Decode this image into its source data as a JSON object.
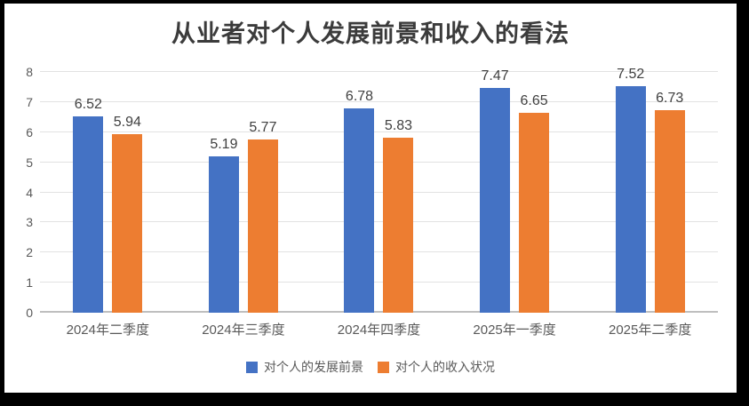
{
  "title": "从业者对个人发展前景和收入的看法",
  "chart_data": {
    "type": "bar",
    "title": "从业者对个人发展前景和收入的看法",
    "categories": [
      "2024年二季度",
      "2024年三季度",
      "2024年四季度",
      "2025年一季度",
      "2025年二季度"
    ],
    "series": [
      {
        "name": "对个人的发展前景",
        "color": "#4472C4",
        "values": [
          6.52,
          5.19,
          6.78,
          7.47,
          7.52
        ]
      },
      {
        "name": "对个人的收入状况",
        "color": "#ED7D31",
        "values": [
          5.94,
          5.77,
          5.83,
          6.65,
          6.73
        ]
      }
    ],
    "xlabel": "",
    "ylabel": "",
    "ylim": [
      0,
      8
    ],
    "yticks": [
      0,
      1,
      2,
      3,
      4,
      5,
      6,
      7,
      8
    ],
    "grid": true,
    "legend_position": "bottom",
    "value_label_decimals": 2
  },
  "colors": {
    "grid": "#e2e2e2",
    "axis_line": "#bfbfbf",
    "tick_text": "#595959",
    "value_label_text": "#404040",
    "title_text": "#3b3b3b",
    "frame": "#000000",
    "background": "#ffffff"
  }
}
